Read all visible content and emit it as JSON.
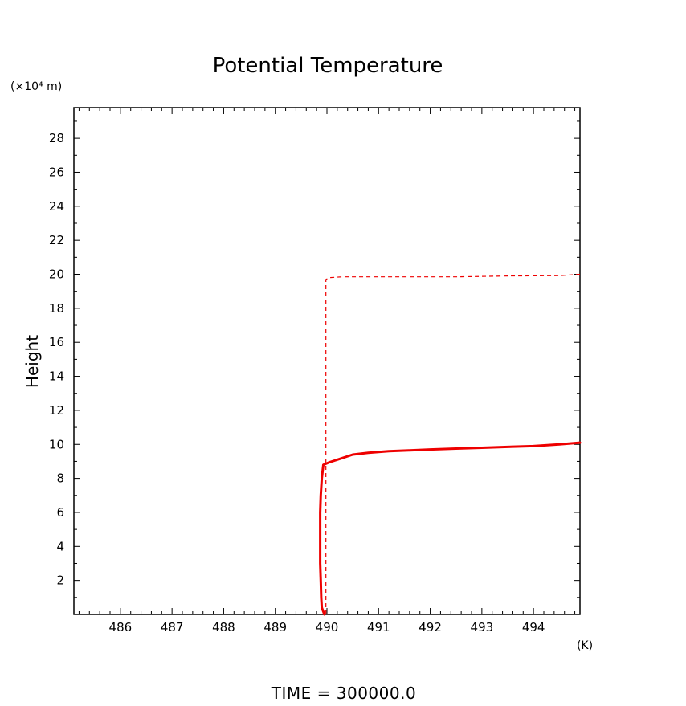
{
  "chart_data": {
    "type": "line",
    "title": "Potential Temperature",
    "ylabel": "Height",
    "y_unit": "(×10⁴ m)",
    "x_unit": "(K)",
    "footer": "TIME  =  300000.0",
    "xlim": [
      485.1,
      494.9
    ],
    "ylim": [
      0,
      29.8
    ],
    "x_ticks": [
      486,
      487,
      488,
      489,
      490,
      491,
      492,
      493,
      494
    ],
    "y_ticks": [
      2,
      4,
      6,
      8,
      10,
      12,
      14,
      16,
      18,
      20,
      22,
      24,
      26,
      28
    ],
    "grid": false,
    "series": [
      {
        "style": "solid",
        "color": "#ee0000",
        "x": [
          489.95,
          489.9,
          489.89,
          489.88,
          489.87,
          489.87,
          489.87,
          489.87,
          489.88,
          489.9,
          489.93,
          490.05,
          490.25,
          490.5,
          490.8,
          491.2,
          491.6,
          492.0,
          492.5,
          493.0,
          493.5,
          494.0,
          494.5,
          494.9
        ],
        "y": [
          0.0,
          0.4,
          1.0,
          2.0,
          3.0,
          4.0,
          5.0,
          6.0,
          7.0,
          8.0,
          8.8,
          8.95,
          9.15,
          9.4,
          9.5,
          9.6,
          9.65,
          9.7,
          9.75,
          9.8,
          9.85,
          9.9,
          10.0,
          10.1
        ]
      },
      {
        "style": "dashed",
        "color": "#ee0000",
        "x": [
          489.98,
          489.98,
          489.98,
          489.98,
          489.98,
          489.98,
          490.05,
          490.3,
          490.8,
          491.5,
          492.5,
          493.5,
          494.5,
          494.9
        ],
        "y": [
          0.0,
          4.0,
          8.0,
          12.0,
          16.0,
          19.7,
          19.8,
          19.85,
          19.85,
          19.85,
          19.85,
          19.9,
          19.92,
          20.0
        ]
      }
    ]
  }
}
